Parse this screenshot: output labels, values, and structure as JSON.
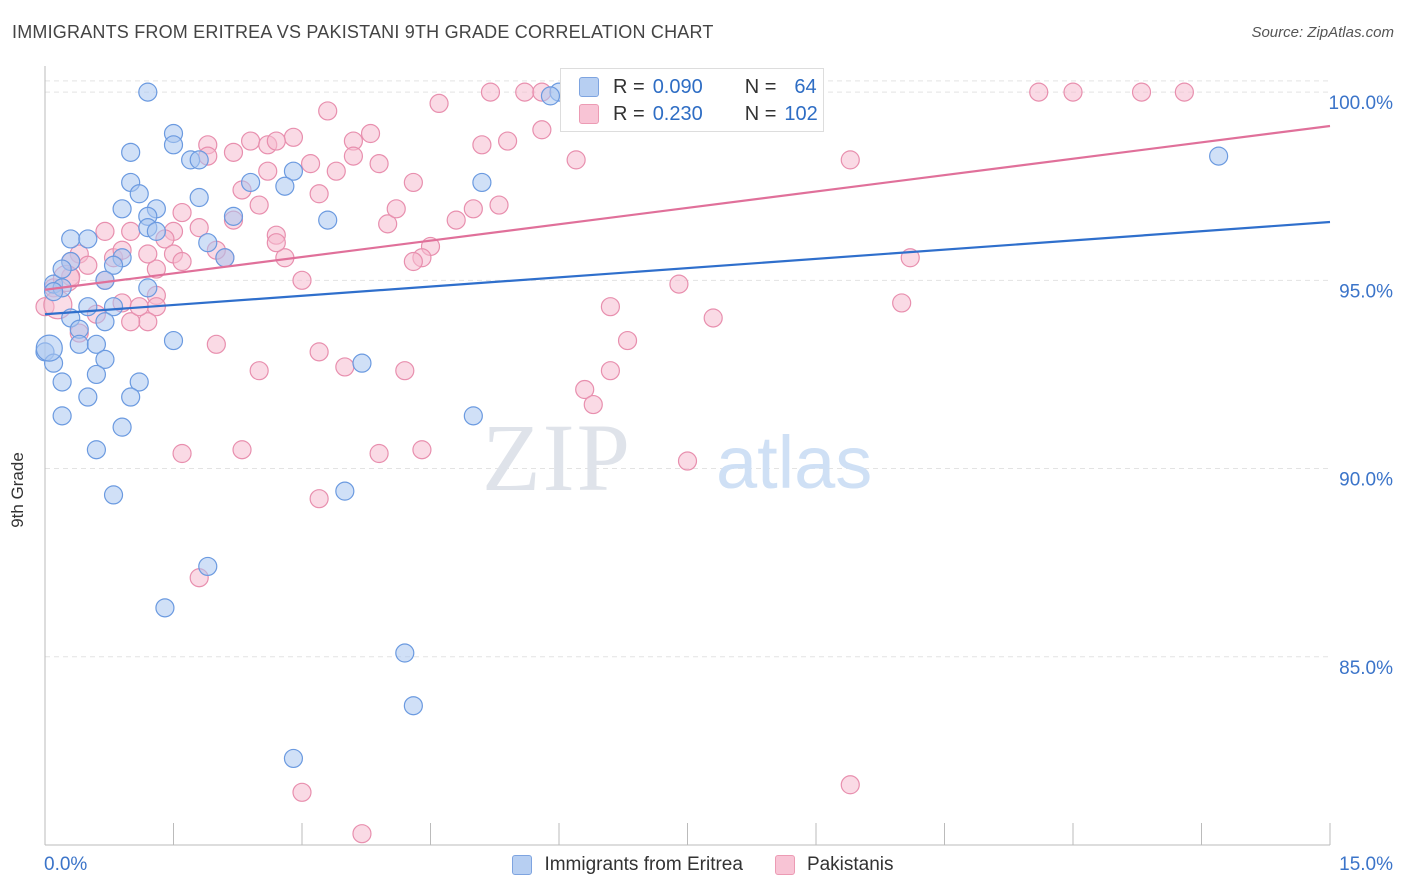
{
  "header": {
    "title": "IMMIGRANTS FROM ERITREA VS PAKISTANI 9TH GRADE CORRELATION CHART",
    "source": "Source: ZipAtlas.com"
  },
  "legend": {
    "r_label": "R =",
    "n_label": "N =",
    "series": [
      {
        "r": "0.090",
        "n": "64"
      },
      {
        "r": "0.230",
        "n": "102"
      }
    ]
  },
  "watermark": {
    "zip": "ZIP",
    "atlas": "atlas"
  },
  "chart_data": {
    "type": "scatter",
    "title": "IMMIGRANTS FROM ERITREA VS PAKISTANI 9TH GRADE CORRELATION CHART",
    "xlabel": "",
    "ylabel": "9th Grade",
    "xlim": [
      0,
      15
    ],
    "ylim": [
      80,
      100.8
    ],
    "x_tick_labels": [
      "0.0%",
      "15.0%"
    ],
    "y_ticks": [
      85,
      90,
      95,
      100
    ],
    "y_tick_labels": [
      "85.0%",
      "90.0%",
      "95.0%",
      "100.0%"
    ],
    "grid": true,
    "legend_position": "bottom",
    "colors": {
      "blue_fill": "#a9c6f0",
      "blue_stroke": "#6b9ae0",
      "blue_line": "#2f6fcc",
      "pink_fill": "#f6bcd0",
      "pink_stroke": "#e88fae",
      "pink_line": "#e0709a",
      "axis_text": "#3b74c9"
    },
    "series": [
      {
        "name": "Immigrants from Eritrea",
        "color": "#a9c6f0",
        "trend": {
          "x": [
            0,
            15
          ],
          "y": [
            94.1,
            96.55
          ]
        },
        "points": [
          [
            1.2,
            100.0
          ],
          [
            6.0,
            100.0
          ],
          [
            5.9,
            99.9
          ],
          [
            1.5,
            98.9
          ],
          [
            1.5,
            98.6
          ],
          [
            1.0,
            98.4
          ],
          [
            1.7,
            98.2
          ],
          [
            1.8,
            98.2
          ],
          [
            2.9,
            97.9
          ],
          [
            1.0,
            97.6
          ],
          [
            2.4,
            97.6
          ],
          [
            2.8,
            97.5
          ],
          [
            5.1,
            97.6
          ],
          [
            1.1,
            97.3
          ],
          [
            1.8,
            97.2
          ],
          [
            0.9,
            96.9
          ],
          [
            1.3,
            96.9
          ],
          [
            1.2,
            96.7
          ],
          [
            2.2,
            96.7
          ],
          [
            3.3,
            96.6
          ],
          [
            1.2,
            96.4
          ],
          [
            0.3,
            96.1
          ],
          [
            0.5,
            96.1
          ],
          [
            1.9,
            96.0
          ],
          [
            0.9,
            95.6
          ],
          [
            2.1,
            95.6
          ],
          [
            0.3,
            95.5
          ],
          [
            0.8,
            95.4
          ],
          [
            0.1,
            94.9
          ],
          [
            0.2,
            94.8
          ],
          [
            0.7,
            95.0
          ],
          [
            1.2,
            94.8
          ],
          [
            0.5,
            94.3
          ],
          [
            0.8,
            94.3
          ],
          [
            0.3,
            94.0
          ],
          [
            0.7,
            93.9
          ],
          [
            0.4,
            93.7
          ],
          [
            1.5,
            93.4
          ],
          [
            0.4,
            93.3
          ],
          [
            0.6,
            93.3
          ],
          [
            0.0,
            93.1
          ],
          [
            0.7,
            92.9
          ],
          [
            0.1,
            92.8
          ],
          [
            3.7,
            92.8
          ],
          [
            0.6,
            92.5
          ],
          [
            0.2,
            92.3
          ],
          [
            1.1,
            92.3
          ],
          [
            0.5,
            91.9
          ],
          [
            1.0,
            91.9
          ],
          [
            0.2,
            91.4
          ],
          [
            5.0,
            91.4
          ],
          [
            0.9,
            91.1
          ],
          [
            0.6,
            90.5
          ],
          [
            3.5,
            89.4
          ],
          [
            0.8,
            89.3
          ],
          [
            1.9,
            87.4
          ],
          [
            1.4,
            86.3
          ],
          [
            4.2,
            85.1
          ],
          [
            4.3,
            83.7
          ],
          [
            2.9,
            82.3
          ],
          [
            13.7,
            98.3
          ],
          [
            0.1,
            94.7
          ],
          [
            0.2,
            95.3
          ],
          [
            1.3,
            96.3
          ]
        ]
      },
      {
        "name": "Pakistanis",
        "color": "#f6bcd0",
        "trend": {
          "x": [
            0,
            15
          ],
          "y": [
            94.75,
            99.1
          ]
        },
        "points": [
          [
            5.2,
            100.0
          ],
          [
            5.6,
            100.0
          ],
          [
            5.8,
            100.0
          ],
          [
            8.4,
            100.0
          ],
          [
            8.6,
            100.0
          ],
          [
            8.7,
            100.0
          ],
          [
            11.6,
            100.0
          ],
          [
            12.0,
            100.0
          ],
          [
            12.8,
            100.0
          ],
          [
            13.3,
            100.0
          ],
          [
            4.6,
            99.7
          ],
          [
            8.0,
            99.6
          ],
          [
            3.3,
            99.5
          ],
          [
            5.8,
            99.0
          ],
          [
            3.8,
            98.9
          ],
          [
            2.9,
            98.8
          ],
          [
            2.4,
            98.7
          ],
          [
            3.6,
            98.7
          ],
          [
            5.4,
            98.7
          ],
          [
            2.6,
            98.6
          ],
          [
            2.7,
            98.7
          ],
          [
            5.1,
            98.6
          ],
          [
            1.9,
            98.6
          ],
          [
            2.2,
            98.4
          ],
          [
            3.6,
            98.3
          ],
          [
            1.9,
            98.3
          ],
          [
            6.2,
            98.2
          ],
          [
            9.4,
            98.2
          ],
          [
            3.9,
            98.1
          ],
          [
            3.1,
            98.1
          ],
          [
            2.6,
            97.9
          ],
          [
            3.4,
            97.9
          ],
          [
            4.3,
            97.6
          ],
          [
            2.3,
            97.4
          ],
          [
            2.5,
            97.0
          ],
          [
            5.0,
            96.9
          ],
          [
            1.6,
            96.8
          ],
          [
            4.0,
            96.5
          ],
          [
            4.8,
            96.6
          ],
          [
            2.2,
            96.6
          ],
          [
            1.8,
            96.4
          ],
          [
            1.0,
            96.3
          ],
          [
            1.5,
            96.3
          ],
          [
            0.7,
            96.3
          ],
          [
            2.7,
            96.2
          ],
          [
            1.4,
            96.1
          ],
          [
            4.5,
            95.9
          ],
          [
            0.4,
            95.7
          ],
          [
            1.5,
            95.7
          ],
          [
            2.1,
            95.6
          ],
          [
            2.8,
            95.6
          ],
          [
            10.1,
            95.6
          ],
          [
            4.4,
            95.6
          ],
          [
            4.3,
            95.5
          ],
          [
            0.8,
            95.6
          ],
          [
            0.3,
            95.5
          ],
          [
            1.6,
            95.5
          ],
          [
            1.3,
            95.3
          ],
          [
            0.3,
            95.1
          ],
          [
            0.7,
            95.0
          ],
          [
            3.0,
            95.0
          ],
          [
            7.4,
            94.9
          ],
          [
            0.1,
            94.8
          ],
          [
            1.3,
            94.6
          ],
          [
            10.0,
            94.4
          ],
          [
            1.3,
            94.3
          ],
          [
            0.9,
            94.4
          ],
          [
            6.6,
            94.3
          ],
          [
            0.0,
            94.3
          ],
          [
            1.2,
            93.9
          ],
          [
            1.0,
            93.9
          ],
          [
            0.4,
            93.6
          ],
          [
            2.0,
            93.3
          ],
          [
            3.2,
            93.1
          ],
          [
            4.2,
            92.6
          ],
          [
            3.5,
            92.7
          ],
          [
            6.6,
            92.6
          ],
          [
            2.5,
            92.6
          ],
          [
            6.3,
            92.1
          ],
          [
            6.4,
            91.7
          ],
          [
            1.6,
            90.4
          ],
          [
            2.3,
            90.5
          ],
          [
            4.4,
            90.5
          ],
          [
            3.9,
            90.4
          ],
          [
            7.5,
            90.2
          ],
          [
            3.2,
            89.2
          ],
          [
            1.8,
            87.1
          ],
          [
            9.4,
            81.6
          ],
          [
            3.0,
            81.4
          ],
          [
            3.7,
            80.3
          ],
          [
            0.5,
            95.4
          ],
          [
            2.0,
            95.8
          ],
          [
            0.9,
            95.8
          ],
          [
            1.2,
            95.7
          ],
          [
            5.3,
            97.0
          ],
          [
            4.1,
            96.9
          ],
          [
            1.1,
            94.3
          ],
          [
            0.6,
            94.1
          ],
          [
            2.7,
            96.0
          ],
          [
            7.8,
            94.0
          ],
          [
            3.2,
            97.3
          ],
          [
            6.8,
            93.4
          ]
        ]
      }
    ]
  }
}
